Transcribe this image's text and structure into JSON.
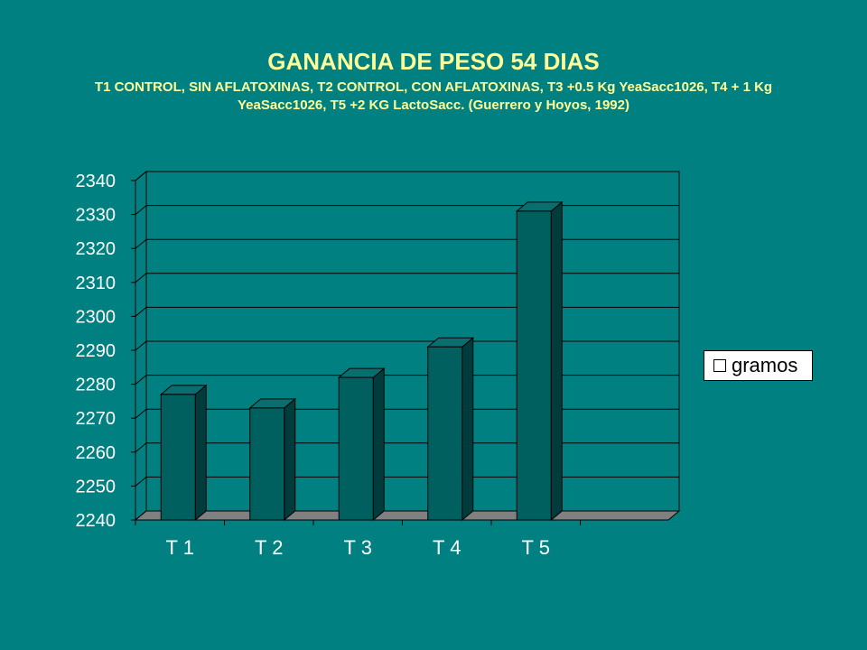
{
  "title": "GANANCIA DE PESO 54 DIAS",
  "subtitle": "T1 CONTROL, SIN AFLATOXINAS, T2 CONTROL, CON AFLATOXINAS, T3 +0.5 Kg YeaSacc1026, T4 + 1 Kg YeaSacc1026, T5 +2 KG LactoSacc. (Guerrero y Hoyos, 1992)",
  "colors": {
    "background": "#008080",
    "title": "#FFFF99",
    "bar_front": "#006060",
    "bar_side": "#003c3c",
    "bar_top": "#0b6e6e",
    "floor": "#808080",
    "wall": "#008080"
  },
  "chart_data": {
    "type": "bar",
    "title": "GANANCIA DE PESO 54 DIAS",
    "categories": [
      "T 1",
      "T 2",
      "T 3",
      "T 4",
      "T 5"
    ],
    "series": [
      {
        "name": "gramos",
        "values": [
          2277,
          2273,
          2282,
          2291,
          2331
        ]
      }
    ],
    "ylim": [
      2240,
      2340
    ],
    "yticks": [
      2240,
      2250,
      2260,
      2270,
      2280,
      2290,
      2300,
      2310,
      2320,
      2330,
      2340
    ],
    "xlabel": "",
    "ylabel": "",
    "grid": true,
    "legend": "right",
    "style": "3d"
  }
}
